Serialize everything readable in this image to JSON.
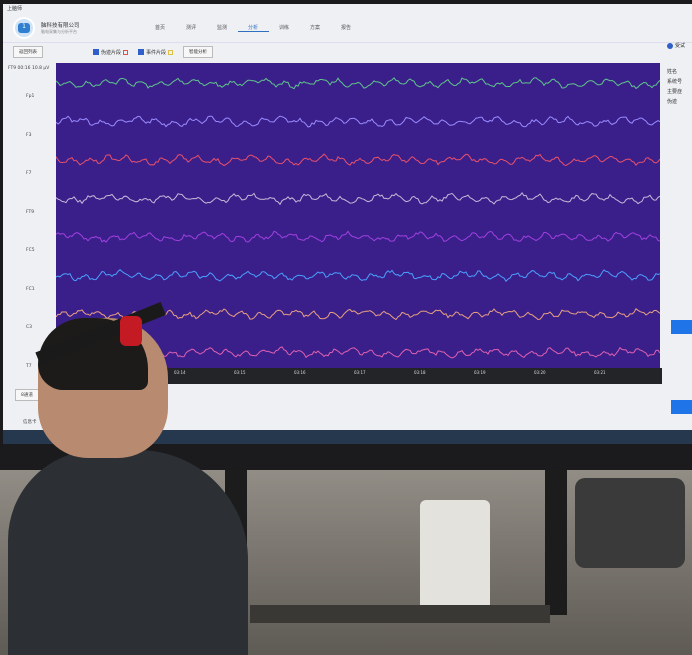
{
  "window": {
    "title": "上脑师"
  },
  "header": {
    "company": "脑科技有限公司",
    "subtitle": "脑电采集与分析平台",
    "nav": [
      {
        "label": "首页"
      },
      {
        "label": "测评"
      },
      {
        "label": "监测"
      },
      {
        "label": "分析",
        "active": true
      },
      {
        "label": "训练"
      },
      {
        "label": "方案"
      },
      {
        "label": "报告"
      }
    ]
  },
  "toolbar": {
    "back_label": "返回列表",
    "artifact_label": "伪迹片段",
    "artifact_checked": true,
    "artifact_color": "#e05050",
    "event_label": "事件片段",
    "event_checked": true,
    "event_color": "#e0c040",
    "analyze_label": "智能分析"
  },
  "eeg": {
    "readout": "FT9 00:16 10.8 μV",
    "background": "#3a1f8a",
    "channels": [
      {
        "name": "Fp1",
        "color": "#5fc48a"
      },
      {
        "name": "F3",
        "color": "#9a8cff"
      },
      {
        "name": "F7",
        "color": "#e8506a"
      },
      {
        "name": "FT9",
        "color": "#c8b8d8"
      },
      {
        "name": "FC5",
        "color": "#a040e0"
      },
      {
        "name": "FC1",
        "color": "#4aa0ff"
      },
      {
        "name": "C3",
        "color": "#e8a080"
      },
      {
        "name": "T7",
        "color": "#e060b0"
      }
    ],
    "times": [
      "03:14",
      "03:15",
      "03:16",
      "03:17",
      "03:18",
      "03:19",
      "03:20",
      "03:21"
    ]
  },
  "footer": {
    "channels_button": "8通道",
    "info_label": "信息卡"
  },
  "right_panel": {
    "title": "受试",
    "fields": [
      "姓名",
      "系统号",
      "主要症",
      "伪迹"
    ]
  }
}
